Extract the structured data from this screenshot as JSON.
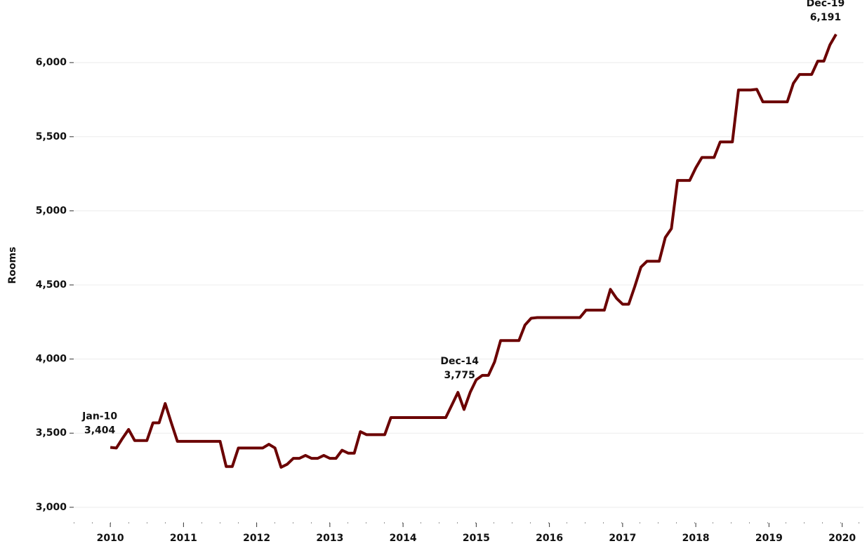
{
  "chart_data": {
    "type": "line",
    "y_label": "Rooms",
    "x": [
      "2010-01",
      "2010-02",
      "2010-03",
      "2010-04",
      "2010-05",
      "2010-06",
      "2010-07",
      "2010-08",
      "2010-09",
      "2010-10",
      "2010-11",
      "2010-12",
      "2011-01",
      "2011-02",
      "2011-03",
      "2011-04",
      "2011-05",
      "2011-06",
      "2011-07",
      "2011-08",
      "2011-09",
      "2011-10",
      "2011-11",
      "2011-12",
      "2012-01",
      "2012-02",
      "2012-03",
      "2012-04",
      "2012-05",
      "2012-06",
      "2012-07",
      "2012-08",
      "2012-09",
      "2012-10",
      "2012-11",
      "2012-12",
      "2013-01",
      "2013-02",
      "2013-03",
      "2013-04",
      "2013-05",
      "2013-06",
      "2013-07",
      "2013-08",
      "2013-09",
      "2013-10",
      "2013-11",
      "2013-12",
      "2014-01",
      "2014-02",
      "2014-03",
      "2014-04",
      "2014-05",
      "2014-06",
      "2014-07",
      "2014-08",
      "2014-09",
      "2014-10",
      "2014-11",
      "2014-12",
      "2015-01",
      "2015-02",
      "2015-03",
      "2015-04",
      "2015-05",
      "2015-06",
      "2015-07",
      "2015-08",
      "2015-09",
      "2015-10",
      "2015-11",
      "2015-12",
      "2016-01",
      "2016-02",
      "2016-03",
      "2016-04",
      "2016-05",
      "2016-06",
      "2016-07",
      "2016-08",
      "2016-09",
      "2016-10",
      "2016-11",
      "2016-12",
      "2017-01",
      "2017-02",
      "2017-03",
      "2017-04",
      "2017-05",
      "2017-06",
      "2017-07",
      "2017-08",
      "2017-09",
      "2017-10",
      "2017-11",
      "2017-12",
      "2018-01",
      "2018-02",
      "2018-03",
      "2018-04",
      "2018-05",
      "2018-06",
      "2018-07",
      "2018-08",
      "2018-09",
      "2018-10",
      "2018-11",
      "2018-12",
      "2019-01",
      "2019-02",
      "2019-03",
      "2019-04",
      "2019-05",
      "2019-06",
      "2019-07",
      "2019-08",
      "2019-09",
      "2019-10",
      "2019-11",
      "2019-12"
    ],
    "series": [
      {
        "name": "Rooms",
        "color": "#6b0000",
        "values": [
          3404,
          3400,
          3465,
          3525,
          3450,
          3450,
          3450,
          3570,
          3570,
          3700,
          3570,
          3445,
          3445,
          3445,
          3445,
          3445,
          3445,
          3445,
          3445,
          3275,
          3275,
          3400,
          3400,
          3400,
          3400,
          3400,
          3425,
          3400,
          3270,
          3290,
          3330,
          3330,
          3350,
          3330,
          3330,
          3350,
          3330,
          3330,
          3385,
          3365,
          3365,
          3510,
          3490,
          3490,
          3490,
          3490,
          3605,
          3605,
          3605,
          3605,
          3605,
          3605,
          3605,
          3605,
          3605,
          3605,
          3690,
          3775,
          3660,
          3775,
          3860,
          3890,
          3890,
          3980,
          4125,
          4125,
          4125,
          4125,
          4230,
          4275,
          4280,
          4280,
          4280,
          4280,
          4280,
          4280,
          4280,
          4280,
          4330,
          4330,
          4330,
          4330,
          4470,
          4410,
          4370,
          4370,
          4490,
          4620,
          4660,
          4660,
          4660,
          4820,
          4880,
          5205,
          5205,
          5205,
          5290,
          5360,
          5360,
          5360,
          5465,
          5465,
          5465,
          5815,
          5815,
          5815,
          5820,
          5735,
          5735,
          5735,
          5735,
          5735,
          5860,
          5920,
          5920,
          5920,
          6010,
          6010,
          6120,
          6191
        ],
        "value_labels": [
          "3,404",
          null,
          null,
          null,
          null,
          null,
          null,
          null,
          null,
          null,
          null,
          null,
          null,
          null,
          null,
          null,
          null,
          null,
          null,
          null,
          null,
          null,
          null,
          null,
          null,
          null,
          null,
          null,
          null,
          null,
          null,
          null,
          null,
          null,
          null,
          null,
          null,
          null,
          null,
          null,
          null,
          null,
          null,
          null,
          null,
          null,
          null,
          null,
          null,
          null,
          null,
          null,
          null,
          null,
          null,
          null,
          null,
          null,
          null,
          "3,775",
          null,
          null,
          null,
          null,
          null,
          null,
          null,
          null,
          null,
          null,
          null,
          null,
          null,
          null,
          null,
          null,
          null,
          null,
          null,
          null,
          null,
          null,
          null,
          null,
          null,
          null,
          null,
          null,
          null,
          null,
          null,
          null,
          null,
          null,
          null,
          null,
          null,
          null,
          null,
          null,
          null,
          null,
          null,
          null,
          null,
          null,
          null,
          null,
          null,
          null,
          null,
          null,
          null,
          null,
          null,
          null,
          null,
          null,
          null,
          "6,191"
        ]
      }
    ],
    "annotations": [
      {
        "x": "2010-01",
        "text": "Jan-10"
      },
      {
        "x": "2014-12",
        "text": "Dec-14"
      },
      {
        "x": "2019-12",
        "text": "Dec-19"
      }
    ],
    "xlim": [
      "2009-07",
      "2020-03"
    ],
    "xticks": [
      {
        "value": "2010-01",
        "label": "2010"
      },
      {
        "value": "2011-01",
        "label": "2011"
      },
      {
        "value": "2012-01",
        "label": "2012"
      },
      {
        "value": "2013-01",
        "label": "2013"
      },
      {
        "value": "2014-01",
        "label": "2014"
      },
      {
        "value": "2015-01",
        "label": "2015"
      },
      {
        "value": "2016-01",
        "label": "2016"
      },
      {
        "value": "2017-01",
        "label": "2017"
      },
      {
        "value": "2018-01",
        "label": "2018"
      },
      {
        "value": "2019-01",
        "label": "2019"
      },
      {
        "value": "2020-01",
        "label": "2020"
      }
    ],
    "ylim": [
      2895,
      6375
    ],
    "yticks": [
      {
        "value": 3000,
        "label": "3,000"
      },
      {
        "value": 3500,
        "label": "3,500"
      },
      {
        "value": 4000,
        "label": "4,000"
      },
      {
        "value": 4500,
        "label": "4,500"
      },
      {
        "value": 5000,
        "label": "5,000"
      },
      {
        "value": 5500,
        "label": "5,500"
      },
      {
        "value": 6000,
        "label": "6,000"
      }
    ],
    "grid": true
  }
}
